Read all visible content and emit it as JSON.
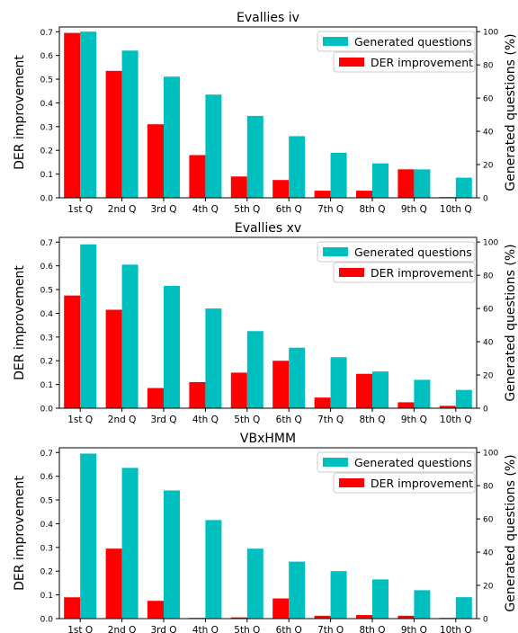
{
  "chart_data": [
    {
      "type": "bar",
      "title": "Evallies iv",
      "categories": [
        "1st Q",
        "2nd Q",
        "3rd Q",
        "4th Q",
        "5th Q",
        "6th Q",
        "7th Q",
        "8th Q",
        "9th Q",
        "10th Q"
      ],
      "ylabel": "DER improvement",
      "ylabel_right": "Generated questions (%)",
      "ylim": [
        0,
        0.72
      ],
      "ylim_right": [
        0,
        102.8
      ],
      "yticks": [
        "0.0",
        "0.1",
        "0.2",
        "0.3",
        "0.4",
        "0.5",
        "0.6",
        "0.7"
      ],
      "yticks_right": [
        "0",
        "20",
        "40",
        "60",
        "80",
        "100"
      ],
      "legend_position": "top-right",
      "series": [
        {
          "name": "DER improvement",
          "axis": "left",
          "color": "#ff0000",
          "values": [
            0.695,
            0.535,
            0.31,
            0.18,
            0.09,
            0.075,
            0.03,
            0.03,
            0.12,
            0.003
          ]
        },
        {
          "name": "Generated questions",
          "axis": "right",
          "color": "#00bfbf",
          "values": [
            100,
            88.6,
            72.9,
            62.1,
            49.3,
            37.1,
            27.1,
            20.7,
            17.1,
            12.1
          ]
        }
      ]
    },
    {
      "type": "bar",
      "title": "Evallies xv",
      "categories": [
        "1st Q",
        "2nd Q",
        "3rd Q",
        "4th Q",
        "5th Q",
        "6th Q",
        "7th Q",
        "8th Q",
        "9th Q",
        "10th Q"
      ],
      "ylabel": "DER improvement",
      "ylabel_right": "Generated questions (%)",
      "ylim": [
        0,
        0.72
      ],
      "ylim_right": [
        0,
        102.8
      ],
      "yticks": [
        "0.0",
        "0.1",
        "0.2",
        "0.3",
        "0.4",
        "0.5",
        "0.6",
        "0.7"
      ],
      "yticks_right": [
        "0",
        "20",
        "40",
        "60",
        "80",
        "100"
      ],
      "legend_position": "top-right",
      "series": [
        {
          "name": "DER improvement",
          "axis": "left",
          "color": "#ff0000",
          "values": [
            0.475,
            0.415,
            0.085,
            0.11,
            0.15,
            0.2,
            0.045,
            0.145,
            0.025,
            0.01
          ]
        },
        {
          "name": "Generated questions",
          "axis": "right",
          "color": "#00bfbf",
          "values": [
            98.6,
            86.4,
            73.6,
            60.0,
            46.4,
            36.4,
            30.7,
            22.1,
            17.1,
            11.0
          ]
        }
      ]
    },
    {
      "type": "bar",
      "title": "VBxHMM",
      "categories": [
        "1st Q",
        "2nd Q",
        "3rd Q",
        "4th Q",
        "5th Q",
        "6th Q",
        "7th Q",
        "8th Q",
        "9th Q",
        "10th Q"
      ],
      "ylabel": "DER improvement",
      "ylabel_right": "Generated questions (%)",
      "ylim": [
        0,
        0.72
      ],
      "ylim_right": [
        0,
        102.8
      ],
      "yticks": [
        "0.0",
        "0.1",
        "0.2",
        "0.3",
        "0.4",
        "0.5",
        "0.6",
        "0.7"
      ],
      "yticks_right": [
        "0",
        "20",
        "40",
        "60",
        "80",
        "100"
      ],
      "legend_position": "top-right",
      "series": [
        {
          "name": "DER improvement",
          "axis": "left",
          "color": "#ff0000",
          "values": [
            0.09,
            0.295,
            0.075,
            0.003,
            0.005,
            0.085,
            0.012,
            0.015,
            0.012,
            0.003
          ]
        },
        {
          "name": "Generated questions",
          "axis": "right",
          "color": "#00bfbf",
          "values": [
            99.3,
            90.7,
            77.1,
            59.3,
            42.1,
            34.3,
            28.6,
            23.6,
            17.1,
            12.9
          ]
        }
      ]
    }
  ]
}
